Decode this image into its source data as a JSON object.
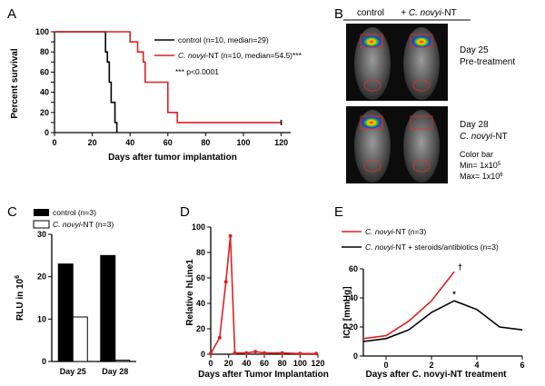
{
  "colors": {
    "control": "#000000",
    "treatment": "#e02020"
  },
  "panel_letters": [
    "A",
    "B",
    "C",
    "D",
    "E"
  ],
  "chart_data": [
    {
      "panel": "A",
      "type": "line",
      "xlabel": "Days after tumor implantation",
      "ylabel": "Percent survival",
      "xlim": [
        0,
        125
      ],
      "ylim": [
        0,
        100
      ],
      "xticks": [
        0,
        20,
        40,
        60,
        80,
        100,
        120
      ],
      "yticks": [
        0,
        10,
        20,
        30,
        40,
        50,
        60,
        70,
        80,
        90,
        100
      ],
      "annotation": "*** p<0.0001",
      "series": [
        {
          "name": "control (n=10, median=29)",
          "step": true,
          "x": [
            0,
            26,
            27,
            28,
            29,
            30,
            32,
            33
          ],
          "y": [
            100,
            100,
            80,
            70,
            50,
            30,
            10,
            0
          ]
        },
        {
          "name_pre": "",
          "name_italic": "C. novyi",
          "name_post": "-NT (n=10, median=54.5)***",
          "step": true,
          "x": [
            0,
            37,
            40,
            44,
            47,
            48,
            60,
            65,
            120
          ],
          "y": [
            100,
            100,
            90,
            80,
            70,
            50,
            20,
            10,
            10
          ]
        }
      ]
    },
    {
      "panel": "C",
      "type": "bar",
      "ylabel_pre": "RLU in 10",
      "ylabel_sup": "6",
      "categories": [
        "Day 25",
        "Day 28"
      ],
      "ylim": [
        0,
        30
      ],
      "yticks": [
        0,
        10,
        20,
        30
      ],
      "series": [
        {
          "name": "control (n=3)",
          "values": [
            23,
            25
          ]
        },
        {
          "name_pre": "",
          "name_italic": "C. novyi",
          "name_post": "-NT (n=3)",
          "values": [
            10.5,
            0.3
          ]
        }
      ]
    },
    {
      "panel": "D",
      "type": "line",
      "xlabel": "Days after Tumor Implantation",
      "ylabel": "Relative hLine1",
      "xlim": [
        0,
        120
      ],
      "ylim": [
        0,
        100
      ],
      "xticks": [
        0,
        20,
        40,
        60,
        80,
        100,
        120
      ],
      "yticks": [
        0,
        20,
        40,
        60,
        80,
        100
      ],
      "series": [
        {
          "name": "",
          "x": [
            0,
            10,
            17,
            22,
            27,
            40,
            50,
            60,
            80,
            100,
            118
          ],
          "y": [
            0.5,
            13,
            57,
            93,
            1,
            1,
            2,
            1,
            1,
            0.5,
            0.5
          ]
        }
      ]
    },
    {
      "panel": "E",
      "type": "line",
      "xlabel": "Days after C. novyi-NT treatment",
      "ylabel": "ICP  [mmHg]",
      "xlim": [
        -1,
        6
      ],
      "ylim": [
        0,
        60
      ],
      "xticks": [
        0,
        2,
        4,
        6
      ],
      "yticks": [
        0,
        20,
        40,
        60
      ],
      "series": [
        {
          "name_pre": "",
          "name_italic": "C. novyi",
          "name_post": "-NT (n=3)",
          "x": [
            -1,
            0,
            1,
            2,
            3
          ],
          "y": [
            12,
            14,
            24,
            38,
            58
          ],
          "end_mark": "†"
        },
        {
          "name_pre": "",
          "name_italic": "C. novyi",
          "name_post": "-NT + steroids/antibiotics (n=3)",
          "x": [
            -1,
            0,
            1,
            2,
            3,
            4,
            5,
            6
          ],
          "y": [
            10,
            12,
            18,
            30,
            38,
            32,
            20,
            18
          ],
          "peak_mark": "*"
        }
      ]
    }
  ],
  "panel_b": {
    "col_control": "control",
    "col_treat_pre": "+ ",
    "col_treat_italic": "C. novyi",
    "col_treat_post": "-NT",
    "row1_line1": "Day 25",
    "row1_line2": "Pre-treatment",
    "row2_line1": "Day 28",
    "row2_italic": "C. novyi",
    "row2_post": "-NT",
    "colorbar_title": "Color bar",
    "min_pre": "Min= 1x10",
    "min_sup": "5",
    "max_pre": "Max= 1x10",
    "max_sup": "6"
  }
}
